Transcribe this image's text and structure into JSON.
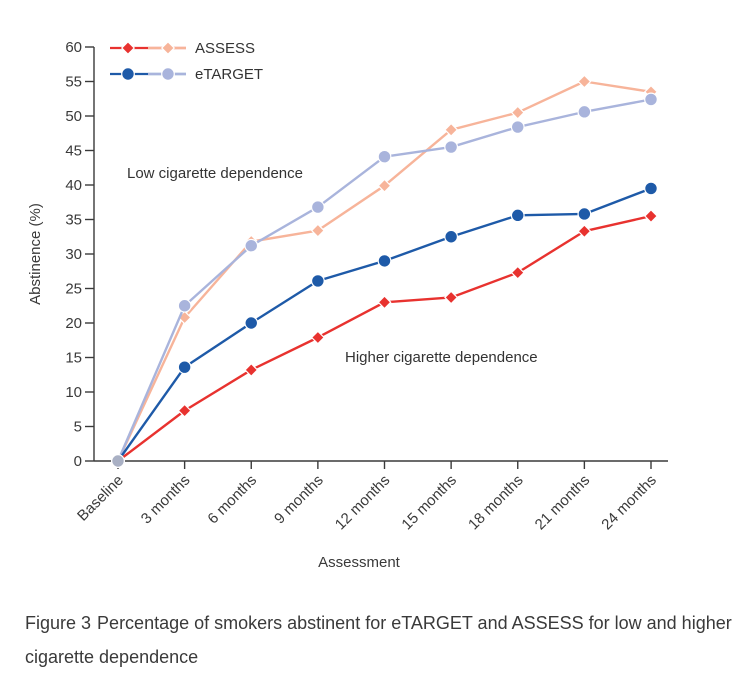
{
  "chart_data": {
    "type": "line",
    "ylabel": "Abstinence (%)",
    "xlabel": "Assessment",
    "ylim": [
      0,
      60
    ],
    "yticks": [
      0,
      5,
      10,
      15,
      20,
      25,
      30,
      35,
      40,
      45,
      50,
      55,
      60
    ],
    "categories": [
      "Baseline",
      "3 months",
      "6 months",
      "9 months",
      "12 months",
      "15 months",
      "18 months",
      "21 months",
      "24 months"
    ],
    "legend": {
      "position": "top-left",
      "entries": [
        {
          "label": "ASSESS",
          "marker": "diamond",
          "colors": [
            "#e8322f",
            "#f7b49a"
          ]
        },
        {
          "label": "eTARGET",
          "marker": "circle",
          "colors": [
            "#1e5aa8",
            "#a9b4dc"
          ]
        }
      ]
    },
    "annotations": [
      {
        "text": "Low cigarette dependence"
      },
      {
        "text": "Higher cigarette dependence"
      }
    ],
    "series": [
      {
        "group": "Low cigarette dependence",
        "program": "ASSESS",
        "color": "#f7b49a",
        "marker": "diamond",
        "values": [
          0,
          20.8,
          31.8,
          33.4,
          39.9,
          48.0,
          50.5,
          55.0,
          53.5
        ]
      },
      {
        "group": "Low cigarette dependence",
        "program": "eTARGET",
        "color": "#a9b4dc",
        "marker": "circle",
        "values": [
          0,
          22.5,
          31.2,
          36.8,
          44.1,
          45.5,
          48.4,
          50.6,
          52.4
        ]
      },
      {
        "group": "Higher cigarette dependence",
        "program": "eTARGET",
        "color": "#1e5aa8",
        "marker": "circle",
        "values": [
          0,
          13.6,
          20.0,
          26.1,
          29.0,
          32.5,
          35.6,
          35.8,
          39.5
        ]
      },
      {
        "group": "Higher cigarette dependence",
        "program": "ASSESS",
        "color": "#e8322f",
        "marker": "diamond",
        "values": [
          0,
          7.3,
          13.2,
          17.9,
          23.0,
          23.7,
          27.3,
          33.3,
          35.5
        ]
      }
    ],
    "colors": {
      "axis": "#3a3a3a"
    }
  },
  "caption": {
    "label": "Figure 3",
    "text": "Percentage of smokers abstinent for eTARGET and ASSESS for low and higher cigarette dependence"
  }
}
